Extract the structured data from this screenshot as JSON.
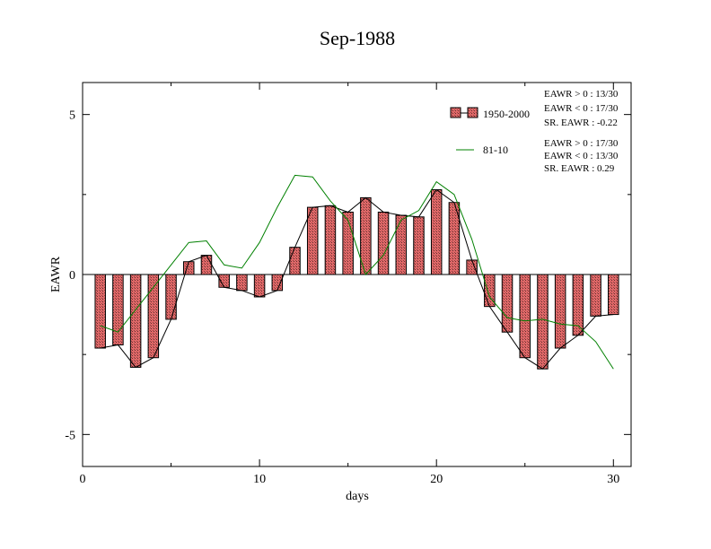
{
  "chart_data": {
    "type": "bar",
    "title": "Sep-1988",
    "xlabel": "days",
    "ylabel": "EAWR",
    "xlim": [
      0,
      31
    ],
    "ylim": [
      -6,
      6
    ],
    "xticks": [
      0,
      10,
      20,
      30
    ],
    "yticks": [
      -5,
      0,
      5
    ],
    "x": [
      1,
      2,
      3,
      4,
      5,
      6,
      7,
      8,
      9,
      10,
      11,
      12,
      13,
      14,
      15,
      16,
      17,
      18,
      19,
      20,
      21,
      22,
      23,
      24,
      25,
      26,
      27,
      28,
      29,
      30
    ],
    "series": [
      {
        "name": "1950-2000",
        "kind": "bar",
        "color": "#e06060",
        "values": [
          -2.3,
          -2.2,
          -2.9,
          -2.6,
          -1.4,
          0.4,
          0.6,
          -0.4,
          -0.5,
          -0.7,
          -0.5,
          0.85,
          2.1,
          2.15,
          1.95,
          2.4,
          1.95,
          1.85,
          1.8,
          2.65,
          2.25,
          0.45,
          -1.0,
          -1.8,
          -2.6,
          -2.95,
          -2.3,
          -1.9,
          -1.3,
          -1.25
        ]
      },
      {
        "name": "81-10",
        "kind": "line",
        "color": "#008000",
        "values": [
          -1.6,
          -1.8,
          -1.1,
          -0.4,
          0.3,
          1.0,
          1.05,
          0.3,
          0.2,
          1.0,
          2.1,
          3.1,
          3.05,
          2.3,
          1.7,
          0.0,
          0.6,
          1.7,
          2.0,
          2.9,
          2.5,
          1.1,
          -0.7,
          -1.35,
          -1.45,
          -1.4,
          -1.55,
          -1.6,
          -2.1,
          -2.95
        ]
      }
    ],
    "legend": [
      {
        "label": "1950-2000",
        "stats": [
          "EAWR > 0 : 13/30",
          "EAWR < 0 : 17/30",
          "SR. EAWR : -0.22"
        ]
      },
      {
        "label": "81-10",
        "stats": [
          "EAWR > 0 : 17/30",
          "EAWR < 0 : 13/30",
          "SR. EAWR :  0.29"
        ]
      }
    ],
    "legend_placement": "top-right",
    "grid": false,
    "zero_line": true
  }
}
